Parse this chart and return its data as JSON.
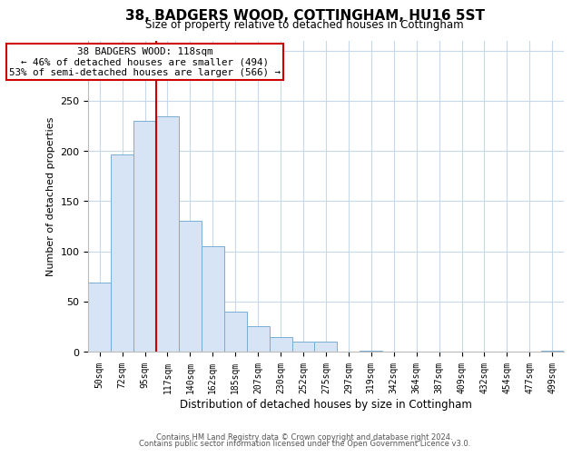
{
  "title": "38, BADGERS WOOD, COTTINGHAM, HU16 5ST",
  "subtitle": "Size of property relative to detached houses in Cottingham",
  "xlabel": "Distribution of detached houses by size in Cottingham",
  "ylabel": "Number of detached properties",
  "bar_labels": [
    "50sqm",
    "72sqm",
    "95sqm",
    "117sqm",
    "140sqm",
    "162sqm",
    "185sqm",
    "207sqm",
    "230sqm",
    "252sqm",
    "275sqm",
    "297sqm",
    "319sqm",
    "342sqm",
    "364sqm",
    "387sqm",
    "409sqm",
    "432sqm",
    "454sqm",
    "477sqm",
    "499sqm"
  ],
  "bar_heights": [
    69,
    196,
    230,
    234,
    130,
    105,
    40,
    25,
    15,
    10,
    10,
    0,
    1,
    0,
    0,
    0,
    0,
    0,
    0,
    0,
    1
  ],
  "bar_color": "#d6e4f5",
  "bar_edge_color": "#7aadd4",
  "ylim": [
    0,
    310
  ],
  "yticks": [
    0,
    50,
    100,
    150,
    200,
    250,
    300
  ],
  "property_line_x": 2.5,
  "property_line_color": "#cc0000",
  "annotation_text": "38 BADGERS WOOD: 118sqm\n← 46% of detached houses are smaller (494)\n53% of semi-detached houses are larger (566) →",
  "annotation_box_color": "#ffffff",
  "annotation_box_edge": "#cc0000",
  "footnote1": "Contains HM Land Registry data © Crown copyright and database right 2024.",
  "footnote2": "Contains public sector information licensed under the Open Government Licence v3.0.",
  "background_color": "#ffffff",
  "grid_color": "#c8d8ec"
}
